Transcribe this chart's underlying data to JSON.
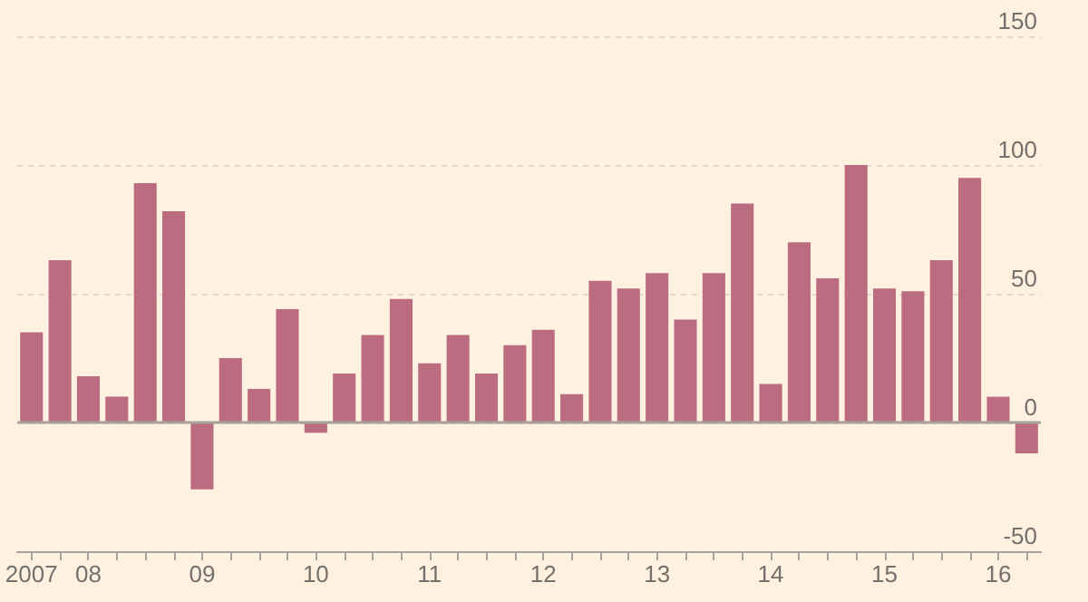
{
  "chart_data": {
    "type": "bar",
    "categories": [
      "2007",
      null,
      "08",
      null,
      null,
      null,
      "09",
      null,
      null,
      null,
      "10",
      null,
      null,
      null,
      "11",
      null,
      null,
      null,
      "12",
      null,
      null,
      null,
      "13",
      null,
      null,
      null,
      "14",
      null,
      null,
      null,
      "15",
      null,
      null,
      null,
      "16",
      null
    ],
    "values": [
      35,
      63,
      18,
      10,
      93,
      82,
      -26,
      25,
      13,
      44,
      -4,
      19,
      34,
      48,
      23,
      34,
      19,
      30,
      36,
      11,
      55,
      52,
      58,
      40,
      58,
      85,
      15,
      70,
      56,
      100,
      52,
      51,
      63,
      95,
      10,
      -12
    ],
    "color": "#bc6c80",
    "ylim": [
      -50,
      150
    ],
    "yticks": [
      -50,
      0,
      50,
      100,
      150
    ],
    "grid": "y",
    "ref_lines": [
      {
        "axis": "y",
        "value": 0
      }
    ]
  }
}
